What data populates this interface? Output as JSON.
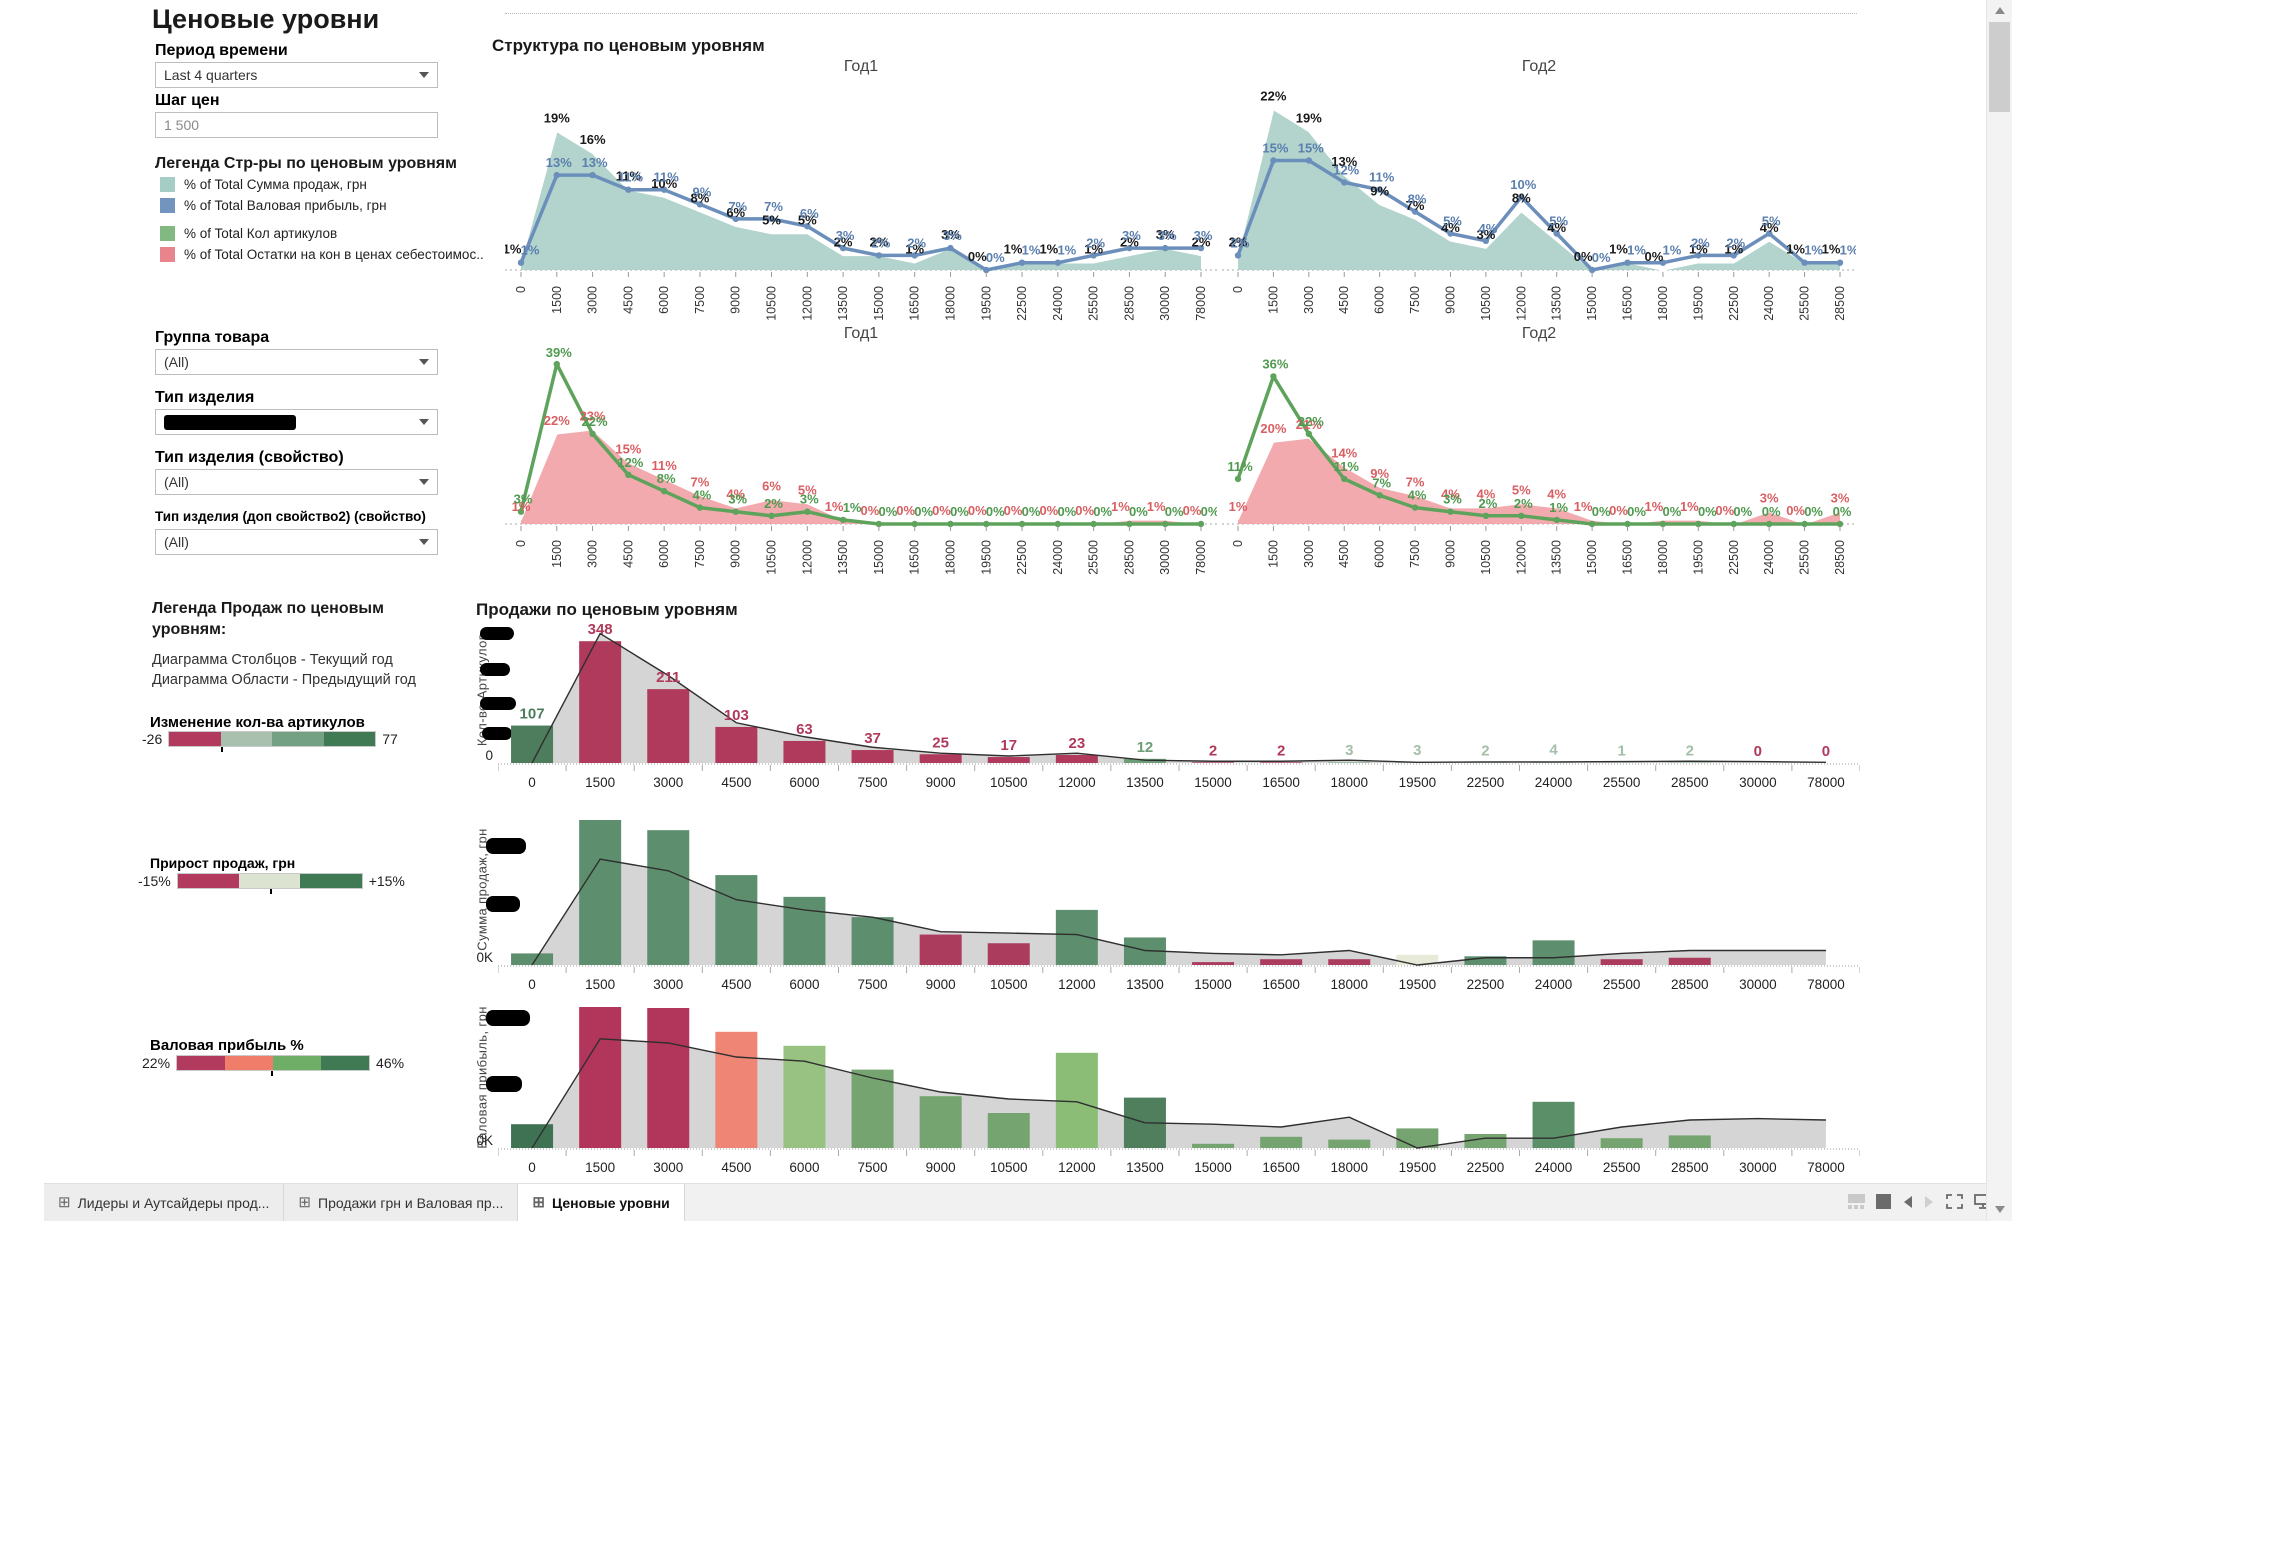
{
  "page": {
    "title": "Ценовые уровни"
  },
  "sidebar": {
    "period": {
      "label": "Период времени",
      "value": "Last 4 quarters"
    },
    "price_step": {
      "label": "Шаг цен",
      "value": "1 500"
    },
    "structure_legend": {
      "title": "Легенда Стр-ры по ценовым уровням",
      "items": [
        {
          "label": "% of Total Сумма продаж, грн",
          "color": "#a5cdc6"
        },
        {
          "label": "% of Total Валовая прибыль, грн",
          "color": "#7394bf"
        },
        {
          "label": "% of Total Кол артикулов",
          "color": "#82b882"
        },
        {
          "label": "% of Total Остатки на кон в ценах себестоимос..",
          "color": "#e8848b"
        }
      ]
    },
    "product_group": {
      "label": "Группа товара",
      "value": "(All)"
    },
    "product_type": {
      "label": "Тип изделия",
      "value_redacted": true
    },
    "product_type_prop": {
      "label": "Тип изделия (свойство)",
      "value": "(All)"
    },
    "product_type_prop2": {
      "label": "Тип изделия (доп свойство2) (свойство)",
      "value": "(All)"
    },
    "sales_legend": {
      "title_line1": "Легенда Продаж по ценовым",
      "title_line2": "уровням:",
      "line1": "Диаграмма Столбцов - Текущий год",
      "line2": "Диаграмма Области - Предыдущий год"
    },
    "article_change_legend": {
      "title": "Изменение кол-ва артикулов",
      "min": "-26",
      "max": "77",
      "colors": [
        "#b13a5e",
        "#a9c0af",
        "#74a183",
        "#3f7a54"
      ],
      "marker_pos": 0.25
    },
    "sales_growth_legend": {
      "title": "Прирост продаж, грн",
      "min": "-15%",
      "max": "+15%",
      "colors": [
        "#b13a5e",
        "#dde3d1",
        "#3f7a54"
      ],
      "marker_pos": 0.5
    },
    "margin_legend": {
      "title": "Валовая прибыль %",
      "min": "22%",
      "max": "46%",
      "colors": [
        "#b13a5e",
        "#f07d6a",
        "#6fae67",
        "#3f7a54"
      ],
      "marker_pos": 0.49
    }
  },
  "main": {
    "structure_title": "Структура по ценовым уровням",
    "sales_title": "Продажи по ценовым уровням",
    "year1": "Год1",
    "year2": "Год2",
    "zero_label": "0",
    "zero_k_label": "0K",
    "y_axis_labels": [
      "Кол-во Артикулов",
      "Сумма продаж, грн",
      "Валовая прибыль, грн"
    ]
  },
  "chart_data": [
    {
      "id": "structure-year1",
      "type": "area",
      "title": "Год1",
      "unit": "%",
      "ylim": [
        0,
        24
      ],
      "categories": [
        "0",
        "1500",
        "3000",
        "4500",
        "6000",
        "7500",
        "9000",
        "10500",
        "12000",
        "13500",
        "15000",
        "16500",
        "18000",
        "19500",
        "22500",
        "24000",
        "25500",
        "28500",
        "30000",
        "78000"
      ],
      "series": [
        {
          "name": "% of Total Сумма продаж, грн",
          "kind": "area",
          "color": "#abd0c9",
          "label_color": "#1a1a1a",
          "values": [
            1,
            19,
            16,
            11,
            10,
            8,
            6,
            5,
            5,
            2,
            2,
            1,
            3,
            0,
            1,
            1,
            1,
            2,
            3,
            2
          ]
        },
        {
          "name": "% of Total Валовая прибыль, грн",
          "kind": "line",
          "color": "#6b8fba",
          "label_color": "#5b7fae",
          "values": [
            1,
            13,
            13,
            11,
            11,
            9,
            7,
            7,
            6,
            3,
            2,
            2,
            3,
            0,
            1,
            1,
            2,
            3,
            3,
            3
          ]
        }
      ]
    },
    {
      "id": "structure-year2",
      "type": "area",
      "title": "Год2",
      "unit": "%",
      "ylim": [
        0,
        24
      ],
      "categories": [
        "0",
        "1500",
        "3000",
        "4500",
        "6000",
        "7500",
        "9000",
        "10500",
        "12000",
        "13500",
        "15000",
        "16500",
        "18000",
        "19500",
        "22500",
        "24000",
        "25500",
        "28500"
      ],
      "series": [
        {
          "name": "% of Total Сумма продаж, грн",
          "kind": "area",
          "color": "#abd0c9",
          "label_color": "#1a1a1a",
          "values": [
            2,
            22,
            19,
            13,
            9,
            7,
            4,
            3,
            8,
            4,
            0,
            1,
            0,
            1,
            1,
            4,
            1,
            1
          ]
        },
        {
          "name": "% of Total Валовая прибыль, грн",
          "kind": "line",
          "color": "#6b8fba",
          "label_color": "#5b7fae",
          "values": [
            2,
            15,
            15,
            12,
            11,
            8,
            5,
            4,
            10,
            5,
            0,
            1,
            1,
            2,
            2,
            5,
            1,
            1
          ]
        }
      ]
    },
    {
      "id": "articles-year1",
      "type": "area",
      "title": "Год1",
      "unit": "%",
      "ylim": [
        0,
        42
      ],
      "categories": [
        "0",
        "1500",
        "3000",
        "4500",
        "6000",
        "7500",
        "9000",
        "10500",
        "12000",
        "13500",
        "15000",
        "16500",
        "18000",
        "19500",
        "22500",
        "24000",
        "25500",
        "28500",
        "30000",
        "78000"
      ],
      "series": [
        {
          "name": "% of Total Остатки на кон в ценах себестоимос..",
          "kind": "area",
          "color": "#f2a3a8",
          "label_color": "#d95f63",
          "values": [
            1,
            22,
            23,
            15,
            11,
            7,
            4,
            6,
            5,
            1,
            0,
            0,
            0,
            0,
            0,
            0,
            0,
            1,
            1,
            0
          ]
        },
        {
          "name": "% of Total Кол артикулов",
          "kind": "line",
          "color": "#5ea35c",
          "label_color": "#4f9a4f",
          "values": [
            3,
            39,
            22,
            12,
            8,
            4,
            3,
            2,
            3,
            1,
            0,
            0,
            0,
            0,
            0,
            0,
            0,
            0,
            0,
            0
          ]
        }
      ]
    },
    {
      "id": "articles-year2",
      "type": "area",
      "title": "Год2",
      "unit": "%",
      "ylim": [
        0,
        42
      ],
      "categories": [
        "0",
        "1500",
        "3000",
        "4500",
        "6000",
        "7500",
        "9000",
        "10500",
        "12000",
        "13500",
        "15000",
        "16500",
        "18000",
        "19500",
        "22500",
        "24000",
        "25500",
        "28500"
      ],
      "series": [
        {
          "name": "% of Total Остатки на кон в ценах себестоимос..",
          "kind": "area",
          "color": "#f2a3a8",
          "label_color": "#d95f63",
          "values": [
            1,
            20,
            21,
            14,
            9,
            7,
            4,
            4,
            5,
            4,
            1,
            0,
            1,
            1,
            0,
            3,
            0,
            3
          ]
        },
        {
          "name": "% of Total Кол артикулов",
          "kind": "line",
          "color": "#5ea35c",
          "label_color": "#4f9a4f",
          "values": [
            11,
            36,
            22,
            11,
            7,
            4,
            3,
            2,
            2,
            1,
            0,
            0,
            0,
            0,
            0,
            0,
            0,
            0
          ]
        }
      ]
    },
    {
      "id": "sales-count",
      "type": "bar",
      "ylabel": "Кол-во Артикулов",
      "axis_zero": "0",
      "ylim": [
        0,
        400
      ],
      "show_value_labels": true,
      "redacted_axis_ticks": 4,
      "categories": [
        "0",
        "1500",
        "3000",
        "4500",
        "6000",
        "7500",
        "9000",
        "10500",
        "12000",
        "13500",
        "15000",
        "16500",
        "18000",
        "19500",
        "22500",
        "24000",
        "25500",
        "28500",
        "30000",
        "78000"
      ],
      "values": [
        107,
        348,
        211,
        103,
        63,
        37,
        25,
        17,
        23,
        12,
        2,
        2,
        3,
        3,
        2,
        4,
        1,
        2,
        0,
        0
      ],
      "bar_colors": [
        "#4d7d5d",
        "#b03a5b",
        "#b03a5b",
        "#b03a5b",
        "#b03a5b",
        "#b03a5b",
        "#b03a5b",
        "#b03a5b",
        "#b03a5b",
        "#6d9e77",
        "#b03a5b",
        "#b03a5b",
        "#a3bfa8",
        "#a3bfa8",
        "#a3bfa8",
        "#a3bfa8",
        "#a3bfa8",
        "#a3bfa8",
        "#b03a5b",
        "#b03a5b"
      ],
      "prev_year_area": [
        0,
        370,
        250,
        115,
        75,
        45,
        28,
        20,
        28,
        8,
        5,
        5,
        8,
        2,
        3,
        3,
        4,
        5,
        4,
        2
      ]
    },
    {
      "id": "sales-sum",
      "type": "bar",
      "ylabel": "Сумма продаж, грн",
      "axis_zero": "0K",
      "ylim": [
        0,
        100
      ],
      "show_value_labels": false,
      "redacted_axis_ticks": 2,
      "categories": [
        "0",
        "1500",
        "3000",
        "4500",
        "6000",
        "7500",
        "9000",
        "10500",
        "12000",
        "13500",
        "15000",
        "16500",
        "18000",
        "19500",
        "22500",
        "24000",
        "25500",
        "28500",
        "30000",
        "78000"
      ],
      "values": [
        8,
        100,
        93,
        62,
        47,
        33,
        21,
        15,
        38,
        19,
        2,
        4,
        4,
        7,
        6,
        17,
        4,
        5,
        0,
        0
      ],
      "bar_colors": [
        "#5d8f6e",
        "#5d8f6e",
        "#5d8f6e",
        "#5d8f6e",
        "#5d8f6e",
        "#5d8f6e",
        "#ab3c5e",
        "#ab3c5e",
        "#5d8f6e",
        "#5d8f6e",
        "#ab3c5e",
        "#ab3c5e",
        "#ab3c5e",
        "#e7ead9",
        "#5d8f6e",
        "#5d8f6e",
        "#ab3c5e",
        "#ab3c5e",
        null,
        null
      ],
      "prev_year_area": [
        0,
        73,
        65,
        45,
        38,
        33,
        23,
        22,
        21,
        10,
        8,
        7,
        10,
        0,
        5,
        5,
        8,
        10,
        10,
        10
      ]
    },
    {
      "id": "sales-profit",
      "type": "bar",
      "ylabel": "Валовая прибыль, грн",
      "axis_zero": "0K",
      "ylim": [
        0,
        100
      ],
      "show_value_labels": false,
      "redacted_axis_ticks": 2,
      "categories": [
        "0",
        "1500",
        "3000",
        "4500",
        "6000",
        "7500",
        "9000",
        "10500",
        "12000",
        "13500",
        "15000",
        "16500",
        "18000",
        "19500",
        "22500",
        "24000",
        "25500",
        "28500",
        "30000",
        "78000"
      ],
      "values": [
        17,
        105,
        100,
        83,
        73,
        56,
        37,
        25,
        68,
        36,
        3,
        8,
        6,
        14,
        10,
        33,
        7,
        9,
        0,
        0
      ],
      "bar_colors": [
        "#3f7253",
        "#b2355c",
        "#b2355c",
        "#ef8575",
        "#97c281",
        "#76a471",
        "#76a471",
        "#76a471",
        "#8cbd77",
        "#4f7f5d",
        "#76a471",
        "#76a471",
        "#76a471",
        "#76a471",
        "#76a471",
        "#5b8f68",
        "#76a471",
        "#76a471",
        null,
        null
      ],
      "prev_year_area": [
        0,
        78,
        75,
        65,
        62,
        50,
        40,
        35,
        33,
        18,
        17,
        15,
        22,
        0,
        7,
        7,
        15,
        20,
        21,
        20
      ]
    }
  ],
  "tabs": [
    {
      "label": "Лидеры и Аутсайдеры прод...",
      "active": false
    },
    {
      "label": "Продажи грн  и Валовая пр...",
      "active": false
    },
    {
      "label": "Ценовые уровни",
      "active": true
    }
  ],
  "tab_icon_glyph": "⊞",
  "toolbar_icons": [
    "grid-view-icon",
    "solid-square-icon",
    "prev-arrow-icon",
    "next-arrow-icon",
    "fullscreen-icon",
    "presentation-icon"
  ]
}
